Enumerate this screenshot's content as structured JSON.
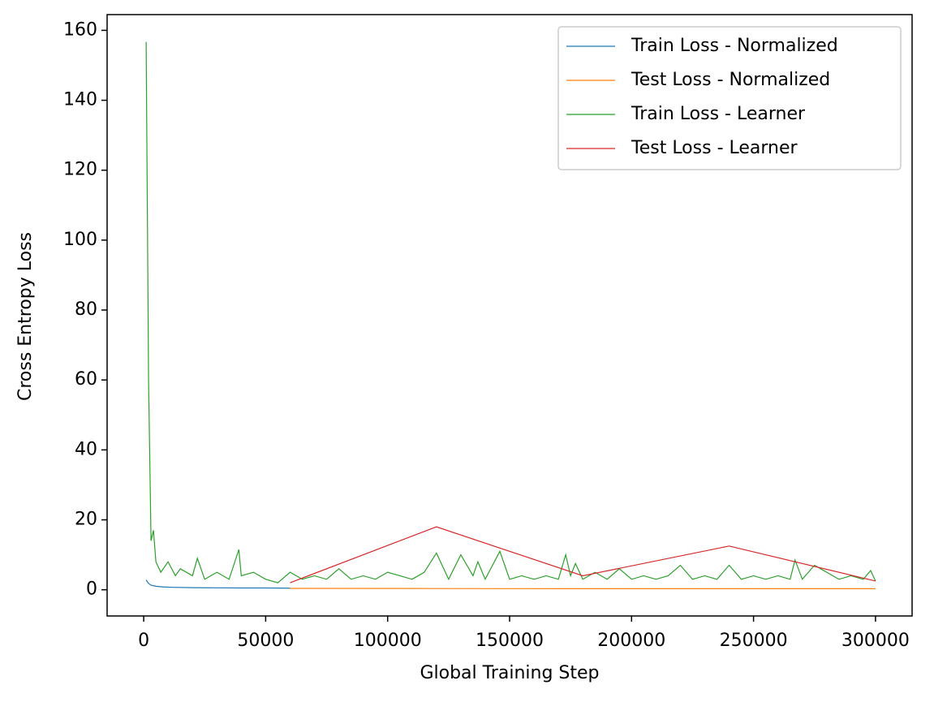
{
  "chart_data": {
    "type": "line",
    "xlabel": "Global Training Step",
    "ylabel": "Cross Entropy Loss",
    "xlim": [
      -15000,
      315000
    ],
    "ylim": [
      -7.5,
      164.5
    ],
    "xticks": [
      0,
      50000,
      100000,
      150000,
      200000,
      250000,
      300000
    ],
    "yticks": [
      0,
      20,
      40,
      60,
      80,
      100,
      120,
      140,
      160
    ],
    "legend": "upper right",
    "series": [
      {
        "name": "Train Loss - Normalized",
        "color": "#1f77b4",
        "x": [
          1000,
          2000,
          3000,
          5000,
          8000,
          12000,
          20000,
          30000,
          40000,
          50000,
          60000
        ],
        "values": [
          2.8,
          1.8,
          1.3,
          1.0,
          0.8,
          0.7,
          0.6,
          0.55,
          0.5,
          0.5,
          0.45
        ]
      },
      {
        "name": "Test Loss - Normalized",
        "color": "#ff7f0e",
        "x": [
          60000,
          120000,
          180000,
          240000,
          300000
        ],
        "values": [
          0.4,
          0.35,
          0.3,
          0.3,
          0.3
        ]
      },
      {
        "name": "Train Loss - Learner",
        "color": "#2ca02c",
        "x": [
          1000,
          2000,
          3000,
          4000,
          5000,
          7000,
          10000,
          13000,
          15000,
          20000,
          22000,
          25000,
          30000,
          35000,
          39000,
          40000,
          45000,
          50000,
          55000,
          60000,
          65000,
          70000,
          75000,
          80000,
          85000,
          90000,
          95000,
          100000,
          105000,
          110000,
          115000,
          120000,
          125000,
          130000,
          135000,
          137000,
          140000,
          146000,
          150000,
          155000,
          160000,
          165000,
          170000,
          173000,
          175000,
          177000,
          180000,
          185000,
          190000,
          195000,
          200000,
          205000,
          210000,
          215000,
          220000,
          225000,
          230000,
          235000,
          240000,
          245000,
          250000,
          255000,
          260000,
          265000,
          267000,
          270000,
          275000,
          280000,
          285000,
          290000,
          295000,
          298000,
          300000
        ],
        "values": [
          156.7,
          60,
          14,
          17,
          8,
          5,
          8,
          4,
          6,
          4,
          9,
          3,
          5,
          3,
          11.5,
          4,
          5,
          3,
          2,
          5,
          3,
          4,
          3,
          6,
          3,
          4,
          3,
          5,
          4,
          3,
          5,
          10.5,
          3,
          10,
          4,
          8,
          3,
          11,
          3,
          4,
          3,
          4,
          3,
          10,
          4,
          7.5,
          3,
          5,
          3,
          6,
          3,
          4,
          3,
          4,
          7,
          3,
          4,
          3,
          7,
          3,
          4,
          3,
          4,
          3,
          8.5,
          3,
          7,
          5,
          3,
          4,
          3,
          5.5,
          2.5
        ]
      },
      {
        "name": "Test Loss - Learner",
        "color": "#d62728",
        "x": [
          60000,
          120000,
          180000,
          240000,
          300000
        ],
        "values": [
          2,
          18,
          4,
          12.5,
          2.5
        ]
      }
    ]
  }
}
